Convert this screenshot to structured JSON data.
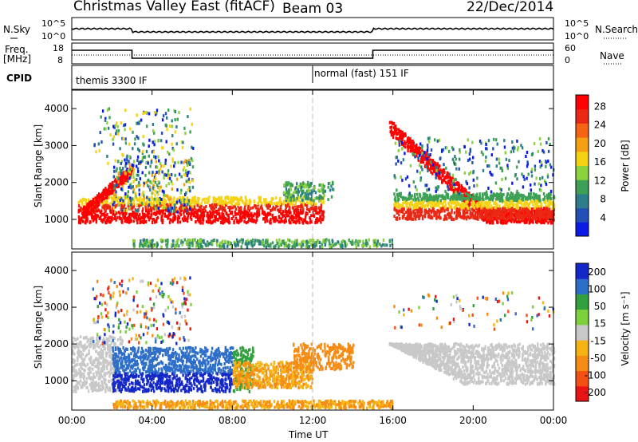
{
  "header": {
    "title": "Christmas Valley East (fitACF)",
    "beam": "Beam 03",
    "date": "22/Dec/2014"
  },
  "panels": {
    "nsky_label": "N.Sky",
    "nsky_ticks": [
      "10^5",
      "10^0"
    ],
    "nsearch_label": "N.Search",
    "freq_label": "Freq.",
    "freq_unit": "[MHz]",
    "freq_ticks": [
      "18",
      "8"
    ],
    "nave_label": "Nave",
    "nave_ticks": [
      "60",
      "0"
    ],
    "cpid_label": "CPID",
    "cpid_modes": [
      "themis 3300 IF",
      "normal (fast) 151 IF"
    ]
  },
  "chart_data": [
    {
      "type": "heatmap",
      "ylabel": "Slant Range [km]",
      "xlabel": "",
      "x_ticks": [
        "00:00",
        "04:00",
        "08:00",
        "12:00",
        "16:00",
        "20:00",
        "00:00"
      ],
      "y_ticks": [
        1000,
        2000,
        3000,
        4000
      ],
      "ylim": [
        200,
        4500
      ],
      "xlim": [
        0,
        24
      ],
      "colorbar": {
        "label": "Power [dB]",
        "ticks": [
          4,
          8,
          12,
          16,
          20,
          24,
          28
        ],
        "colors": [
          "#0a1be6",
          "#2350b4",
          "#2e7d8a",
          "#3ea055",
          "#8cd23c",
          "#f5d214",
          "#f5a014",
          "#f56414",
          "#eb2814",
          "#ff0000"
        ]
      }
    },
    {
      "type": "heatmap",
      "ylabel": "Slant Range [km]",
      "xlabel": "Time UT",
      "x_ticks": [
        "00:00",
        "04:00",
        "08:00",
        "12:00",
        "16:00",
        "20:00",
        "00:00"
      ],
      "y_ticks": [
        1000,
        2000,
        3000,
        4000
      ],
      "ylim": [
        200,
        4500
      ],
      "xlim": [
        0,
        24
      ],
      "colorbar": {
        "label": "Velocity [m s⁻¹]",
        "ticks": [
          200,
          100,
          50,
          15,
          -15,
          -50,
          -100,
          -200
        ],
        "colors": [
          "#1428c8",
          "#2d6ec8",
          "#32a03c",
          "#7dd23c",
          "#c8c8c8",
          "#f5b414",
          "#f58c14",
          "#f55014",
          "#eb1414"
        ]
      }
    }
  ]
}
